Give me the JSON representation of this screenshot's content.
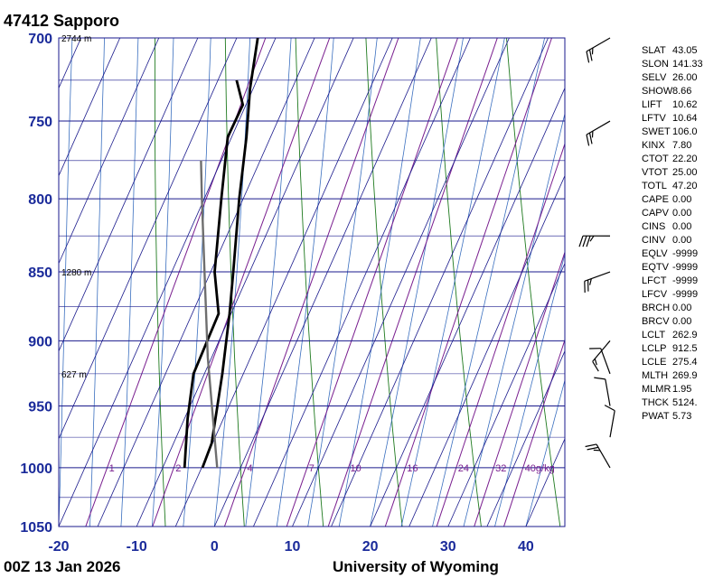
{
  "header": {
    "title": "47412  Sapporo"
  },
  "footer": {
    "time": "00Z 13 Jan 2026",
    "credit": "University of Wyoming"
  },
  "colors": {
    "grid": "#1a1a8c",
    "isotherm": "#1a1a8c",
    "dry_adiabat": "#1f7a1f",
    "moist_adiabat": "#3a6fbf",
    "mixing_ratio": "#7a1f8f",
    "profile": "#000000",
    "parcel": "#6e6e6e"
  },
  "indices": [
    {
      "key": "SLAT",
      "value": "43.05"
    },
    {
      "key": "SLON",
      "value": "141.33"
    },
    {
      "key": "SELV",
      "value": "26.00"
    },
    {
      "key": "SHOW",
      "value": "8.66"
    },
    {
      "key": "LIFT",
      "value": "10.62"
    },
    {
      "key": "LFTV",
      "value": "10.64"
    },
    {
      "key": "SWET",
      "value": "106.0"
    },
    {
      "key": "KINX",
      "value": "7.80"
    },
    {
      "key": "CTOT",
      "value": "22.20"
    },
    {
      "key": "VTOT",
      "value": "25.00"
    },
    {
      "key": "TOTL",
      "value": "47.20"
    },
    {
      "key": "CAPE",
      "value": "0.00"
    },
    {
      "key": "CAPV",
      "value": "0.00"
    },
    {
      "key": "CINS",
      "value": "0.00"
    },
    {
      "key": "CINV",
      "value": "0.00"
    },
    {
      "key": "EQLV",
      "value": "-9999"
    },
    {
      "key": "EQTV",
      "value": "-9999"
    },
    {
      "key": "LFCT",
      "value": "-9999"
    },
    {
      "key": "LFCV",
      "value": "-9999"
    },
    {
      "key": "BRCH",
      "value": "0.00"
    },
    {
      "key": "BRCV",
      "value": "0.00"
    },
    {
      "key": "LCLT",
      "value": "262.9"
    },
    {
      "key": "LCLP",
      "value": "912.5"
    },
    {
      "key": "LCLE",
      "value": "275.4"
    },
    {
      "key": "MLTH",
      "value": "269.9"
    },
    {
      "key": "MLMR",
      "value": "1.95"
    },
    {
      "key": "THCK",
      "value": "5124."
    },
    {
      "key": "PWAT",
      "value": "5.73"
    }
  ],
  "chart_data": {
    "type": "line",
    "title": "47412  Sapporo",
    "xlabel": "",
    "ylabel": "",
    "pressure_range": [
      1050,
      700
    ],
    "temperature_range": [
      -20,
      45
    ],
    "skew": true,
    "log_pressure_axis": true,
    "grid": true,
    "pressure_ticks": [
      "700",
      "750",
      "800",
      "850",
      "900",
      "950",
      "1000",
      "1050"
    ],
    "pressure_tick_values": [
      700,
      750,
      800,
      850,
      900,
      950,
      1000,
      1050
    ],
    "temperature_ticks": [
      "-20",
      "-10",
      "0",
      "10",
      "20",
      "30",
      "40"
    ],
    "temperature_tick_values": [
      -20,
      -10,
      0,
      10,
      20,
      30,
      40
    ],
    "height_labels": [
      {
        "p": 700,
        "label": "2744 m"
      },
      {
        "p": 850,
        "label": "1280 m"
      },
      {
        "p": 925,
        "label": "627 m"
      }
    ],
    "mixing_ratio_labels": [
      "1",
      "2",
      "4",
      "7",
      "10",
      "16",
      "24",
      "32",
      "40g/kg"
    ],
    "mixing_ratio_values": [
      1,
      2,
      4,
      7,
      10,
      16,
      24,
      32,
      40
    ],
    "series": [
      {
        "key": "temperature",
        "p": [
          1000,
          980,
          925,
          880,
          850,
          800,
          760,
          730,
          700
        ],
        "t": [
          -4.9,
          -5.1,
          -7.7,
          -10.2,
          -12.1,
          -15.5,
          -18.1,
          -20.4,
          -22.3
        ]
      },
      {
        "key": "dewpoint",
        "p": [
          1000,
          960,
          925,
          880,
          850,
          800,
          760,
          740,
          725
        ],
        "t": [
          -7.2,
          -9.6,
          -11.4,
          -11.6,
          -14.5,
          -17.8,
          -20.5,
          -20.4,
          -22.6
        ]
      },
      {
        "key": "parcel",
        "p": [
          1000,
          912.5,
          850,
          800,
          775
        ],
        "t": [
          -3.0,
          -10.5,
          -15.8,
          -20.3,
          -22.6
        ]
      }
    ],
    "wind_barbs": [
      {
        "p": 700,
        "dir": 240,
        "speed": 25
      },
      {
        "p": 750,
        "dir": 240,
        "speed": 25
      },
      {
        "p": 825,
        "dir": 270,
        "speed": 35
      },
      {
        "p": 850,
        "dir": 250,
        "speed": 25
      },
      {
        "p": 900,
        "dir": 220,
        "speed": 15
      },
      {
        "p": 925,
        "dir": 340,
        "speed": 10
      },
      {
        "p": 950,
        "dir": 350,
        "speed": 10
      },
      {
        "p": 975,
        "dir": 10,
        "speed": 10
      },
      {
        "p": 1000,
        "dir": 330,
        "speed": 25
      }
    ]
  }
}
